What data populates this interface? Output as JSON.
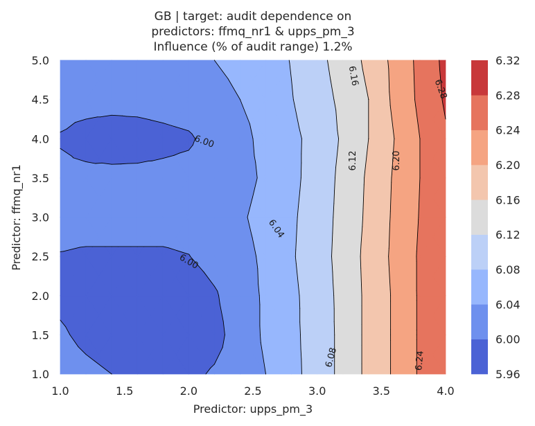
{
  "chart_data": {
    "type": "contour",
    "title_lines": [
      "GB | target: audit dependence on",
      "predictors: ffmq_nr1 & upps_pm_3",
      "Influence (% of audit range) 1.2%"
    ],
    "xlabel": "Predictor: upps_pm_3",
    "ylabel": "Predictor: ffmq_nr1",
    "xlim": [
      1.0,
      4.0
    ],
    "ylim": [
      1.0,
      5.0
    ],
    "x_ticks": [
      "1.0",
      "1.5",
      "2.0",
      "2.5",
      "3.0",
      "3.5",
      "4.0"
    ],
    "y_ticks": [
      "1.0",
      "1.5",
      "2.0",
      "2.5",
      "3.0",
      "3.5",
      "4.0",
      "4.5",
      "5.0"
    ],
    "colormap": "coolwarm",
    "levels": [
      5.96,
      6.0,
      6.04,
      6.08,
      6.12,
      6.16,
      6.2,
      6.24,
      6.28,
      6.32
    ],
    "colorbar_ticks": [
      "5.96",
      "6.00",
      "6.04",
      "6.08",
      "6.12",
      "6.16",
      "6.20",
      "6.24",
      "6.28",
      "6.32"
    ],
    "band_colors": [
      "#4b62d5",
      "#6e90ee",
      "#97b7fd",
      "#bcd0f7",
      "#dcdcdc",
      "#f3c6ae",
      "#f5a482",
      "#e6745e",
      "#c8383a"
    ],
    "grid_x": [
      1.0,
      1.2,
      1.4,
      1.6,
      1.8,
      2.0,
      2.2,
      2.4,
      2.6,
      2.8,
      3.0,
      3.2,
      3.4,
      3.6,
      3.8,
      4.0
    ],
    "grid_y": [
      1.0,
      1.5,
      2.0,
      2.5,
      3.0,
      3.5,
      4.0,
      4.5,
      5.0
    ],
    "z": [
      [
        6.01,
        6.005,
        6.0,
        5.995,
        5.99,
        5.99,
        6.005,
        6.022,
        6.04,
        6.07,
        6.095,
        6.132,
        6.17,
        6.205,
        6.245,
        6.265
      ],
      [
        6.003,
        5.995,
        5.99,
        5.985,
        5.98,
        5.975,
        5.985,
        6.022,
        6.045,
        6.072,
        6.095,
        6.132,
        6.17,
        6.205,
        6.245,
        6.265
      ],
      [
        5.995,
        5.99,
        5.985,
        5.98,
        5.975,
        5.975,
        5.995,
        6.025,
        6.045,
        6.072,
        6.098,
        6.132,
        6.17,
        6.205,
        6.245,
        6.265
      ],
      [
        5.998,
        5.995,
        5.995,
        5.995,
        5.995,
        5.999,
        6.016,
        6.03,
        6.046,
        6.076,
        6.102,
        6.134,
        6.172,
        6.208,
        6.245,
        6.27
      ],
      [
        6.015,
        6.015,
        6.015,
        6.015,
        6.015,
        6.017,
        6.024,
        6.036,
        6.05,
        6.074,
        6.1,
        6.132,
        6.168,
        6.206,
        6.242,
        6.265
      ],
      [
        6.006,
        6.007,
        6.008,
        6.009,
        6.01,
        6.012,
        6.02,
        6.03,
        6.045,
        6.07,
        6.097,
        6.13,
        6.166,
        6.204,
        6.24,
        6.265
      ],
      [
        5.998,
        5.99,
        5.985,
        5.985,
        5.99,
        5.995,
        6.015,
        6.03,
        6.05,
        6.07,
        6.095,
        6.125,
        6.16,
        6.2,
        6.24,
        6.275
      ],
      [
        6.01,
        6.01,
        6.01,
        6.012,
        6.015,
        6.02,
        6.03,
        6.04,
        6.053,
        6.078,
        6.105,
        6.128,
        6.16,
        6.208,
        6.248,
        6.285
      ],
      [
        6.01,
        6.015,
        6.018,
        6.022,
        6.03,
        6.035,
        6.04,
        6.048,
        6.06,
        6.082,
        6.11,
        6.135,
        6.17,
        6.21,
        6.25,
        6.29
      ]
    ],
    "contour_labels": [
      {
        "text": "6.00",
        "x": 2.12,
        "y": 3.96
      },
      {
        "text": "6.00",
        "x": 2.0,
        "y": 2.43
      },
      {
        "text": "6.04",
        "x": 2.68,
        "y": 2.85
      },
      {
        "text": "6.08",
        "x": 3.11,
        "y": 1.21
      },
      {
        "text": "6.12",
        "x": 3.28,
        "y": 3.72
      },
      {
        "text": "6.16",
        "x": 3.28,
        "y": 4.8
      },
      {
        "text": "6.20",
        "x": 3.62,
        "y": 3.72
      },
      {
        "text": "6.24",
        "x": 3.8,
        "y": 1.17
      },
      {
        "text": "6.28",
        "x": 3.96,
        "y": 4.63
      }
    ]
  }
}
